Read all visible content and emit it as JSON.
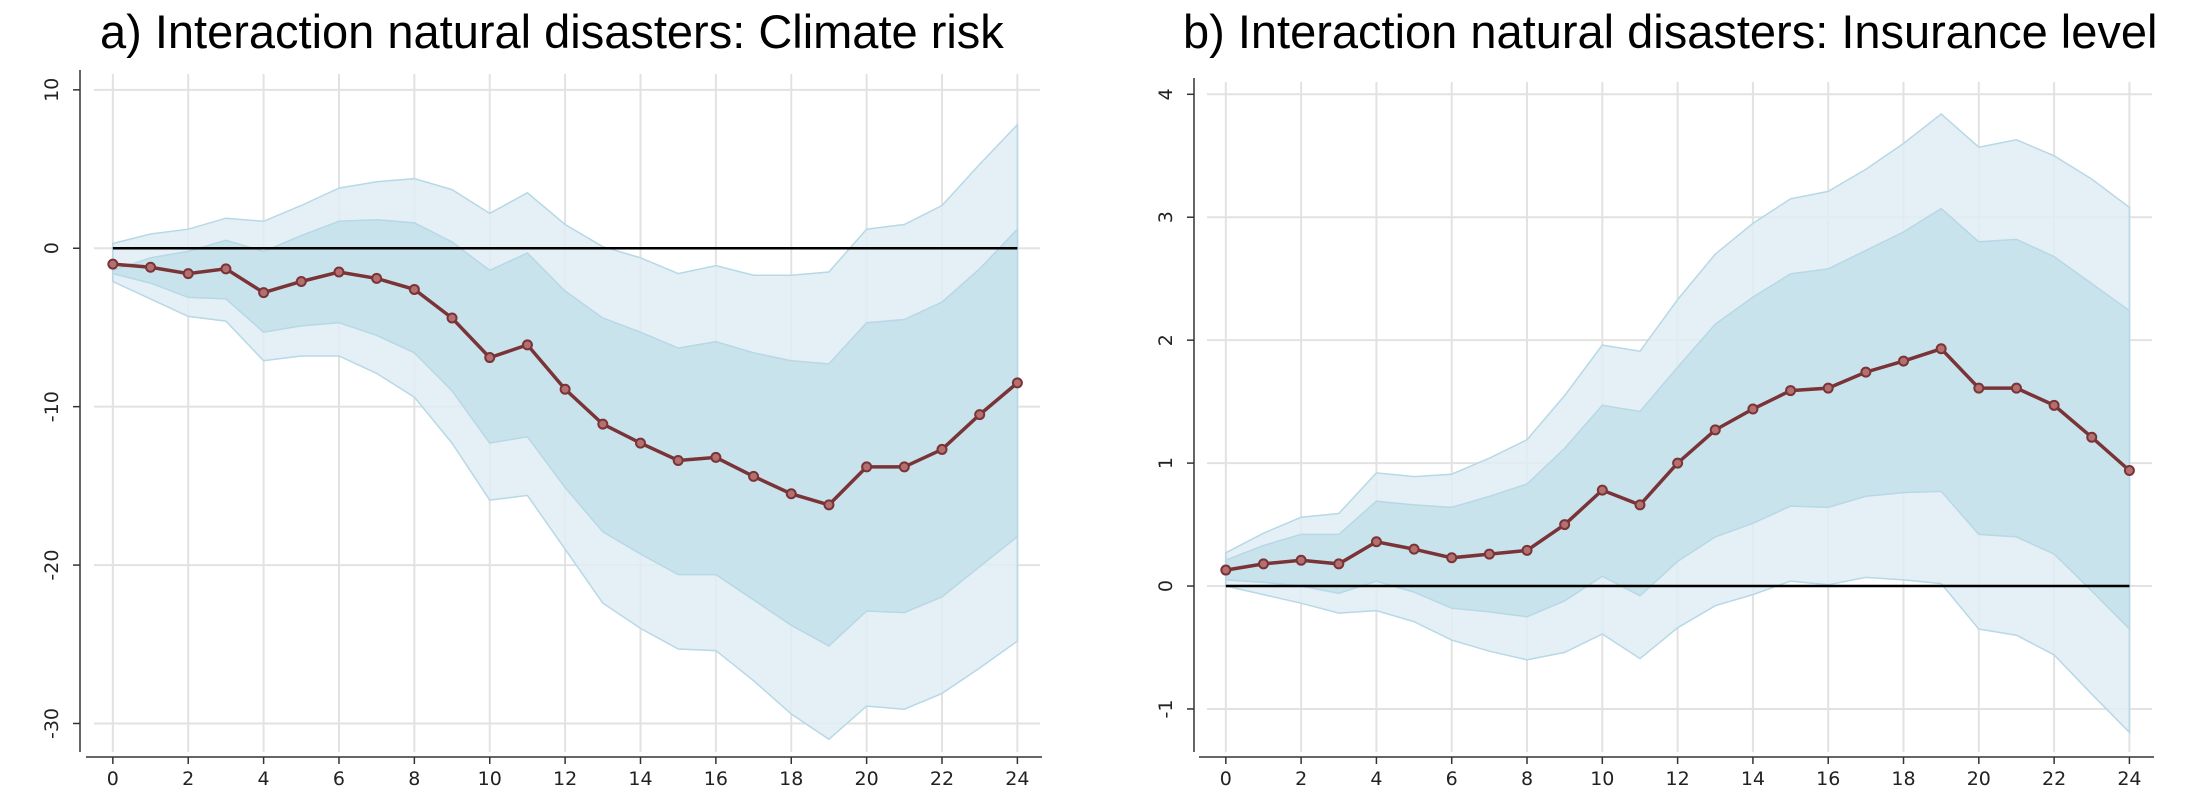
{
  "panels": [
    {
      "title": "a) Interaction natural disasters: Climate risk"
    },
    {
      "title": "b) Interaction natural disasters: Insurance level"
    }
  ],
  "colors": {
    "line": "#7a3438",
    "outer_band": "#dfedf4",
    "inner_band": "#c4e0eb",
    "band_edge": "#b7d8e6",
    "grid": "#e2e2e2",
    "zero_line": "#000000",
    "axis": "#333333"
  },
  "chart_data": [
    {
      "type": "line",
      "title": "a) Interaction natural disasters: Climate risk",
      "xlabel": "",
      "ylabel": "",
      "x": [
        0,
        1,
        2,
        3,
        4,
        5,
        6,
        7,
        8,
        9,
        10,
        11,
        12,
        13,
        14,
        15,
        16,
        17,
        18,
        19,
        20,
        21,
        22,
        23,
        24
      ],
      "xticks": [
        0,
        2,
        4,
        6,
        8,
        10,
        12,
        14,
        16,
        18,
        20,
        22,
        24
      ],
      "yticks": [
        10,
        0,
        -10,
        -20,
        -30
      ],
      "ylim": [
        -31.8,
        11
      ],
      "xlim": [
        -0.5,
        24.6
      ],
      "zero_line": 0,
      "grid": true,
      "series": [
        {
          "values": [
            -1.0,
            -1.2,
            -1.6,
            -1.3,
            -2.8,
            -2.1,
            -1.5,
            -1.9,
            -2.6,
            -4.4,
            -6.9,
            -6.1,
            -8.9,
            -11.1,
            -12.3,
            -13.4,
            -13.2,
            -14.4,
            -15.5,
            -16.2,
            -13.8,
            -13.8,
            -12.7,
            -10.5,
            -8.5
          ],
          "band_inner_upper": [
            -1.4,
            -0.6,
            -0.2,
            0.5,
            -0.2,
            0.8,
            1.7,
            1.8,
            1.6,
            0.4,
            -1.4,
            -0.3,
            -2.7,
            -4.4,
            -5.3,
            -6.3,
            -5.9,
            -6.6,
            -7.1,
            -7.3,
            -4.7,
            -4.5,
            -3.4,
            -1.3,
            1.2
          ],
          "band_inner_lower": [
            -1.6,
            -2.2,
            -3.1,
            -3.2,
            -5.3,
            -4.9,
            -4.7,
            -5.5,
            -6.6,
            -9.0,
            -12.3,
            -11.9,
            -15.1,
            -17.9,
            -19.3,
            -20.6,
            -20.6,
            -22.2,
            -23.8,
            -25.1,
            -22.9,
            -23.0,
            -22.0,
            -20.1,
            -18.2
          ],
          "band_outer_upper": [
            0.3,
            0.9,
            1.2,
            1.9,
            1.7,
            2.7,
            3.8,
            4.2,
            4.4,
            3.7,
            2.2,
            3.5,
            1.5,
            0.1,
            -0.6,
            -1.6,
            -1.1,
            -1.7,
            -1.7,
            -1.5,
            1.2,
            1.5,
            2.7,
            5.3,
            7.8
          ],
          "band_outer_lower": [
            -2.1,
            -3.2,
            -4.3,
            -4.6,
            -7.1,
            -6.8,
            -6.8,
            -7.9,
            -9.4,
            -12.3,
            -15.9,
            -15.6,
            -19.0,
            -22.4,
            -24.0,
            -25.3,
            -25.4,
            -27.3,
            -29.4,
            -31.0,
            -28.9,
            -29.1,
            -28.1,
            -26.5,
            -24.8
          ]
        }
      ]
    },
    {
      "type": "line",
      "title": "b) Interaction natural disasters: Insurance level",
      "xlabel": "",
      "ylabel": "",
      "x": [
        0,
        1,
        2,
        3,
        4,
        5,
        6,
        7,
        8,
        9,
        10,
        11,
        12,
        13,
        14,
        15,
        16,
        17,
        18,
        19,
        20,
        21,
        22,
        23,
        24
      ],
      "xticks": [
        0,
        2,
        4,
        6,
        8,
        10,
        12,
        14,
        16,
        18,
        20,
        22,
        24
      ],
      "yticks": [
        4,
        3,
        2,
        1,
        0,
        -1
      ],
      "ylim": [
        -1.35,
        4.1
      ],
      "xlim": [
        -0.5,
        24.6
      ],
      "zero_line": 0,
      "grid": true,
      "series": [
        {
          "values": [
            0.13,
            0.18,
            0.21,
            0.18,
            0.36,
            0.3,
            0.23,
            0.26,
            0.29,
            0.5,
            0.78,
            0.66,
            1.0,
            1.27,
            1.44,
            1.59,
            1.61,
            1.74,
            1.83,
            1.93,
            1.61,
            1.61,
            1.47,
            1.21,
            0.94
          ],
          "band_inner_upper": [
            0.21,
            0.33,
            0.42,
            0.42,
            0.69,
            0.66,
            0.64,
            0.73,
            0.83,
            1.12,
            1.47,
            1.42,
            1.78,
            2.13,
            2.35,
            2.54,
            2.58,
            2.73,
            2.88,
            3.07,
            2.8,
            2.82,
            2.68,
            2.46,
            2.24
          ],
          "band_inner_lower": [
            0.05,
            0.03,
            0.0,
            -0.06,
            0.04,
            -0.05,
            -0.18,
            -0.21,
            -0.25,
            -0.12,
            0.08,
            -0.08,
            0.2,
            0.4,
            0.51,
            0.65,
            0.64,
            0.73,
            0.76,
            0.77,
            0.42,
            0.4,
            0.26,
            -0.04,
            -0.35
          ],
          "band_outer_upper": [
            0.27,
            0.43,
            0.56,
            0.59,
            0.92,
            0.89,
            0.91,
            1.04,
            1.19,
            1.55,
            1.96,
            1.91,
            2.33,
            2.7,
            2.95,
            3.15,
            3.21,
            3.39,
            3.6,
            3.84,
            3.57,
            3.63,
            3.5,
            3.31,
            3.08
          ],
          "band_outer_lower": [
            0.0,
            -0.07,
            -0.14,
            -0.22,
            -0.2,
            -0.29,
            -0.44,
            -0.53,
            -0.6,
            -0.54,
            -0.39,
            -0.59,
            -0.34,
            -0.16,
            -0.07,
            0.04,
            0.01,
            0.07,
            0.05,
            0.02,
            -0.35,
            -0.4,
            -0.56,
            -0.88,
            -1.19
          ]
        }
      ]
    }
  ]
}
